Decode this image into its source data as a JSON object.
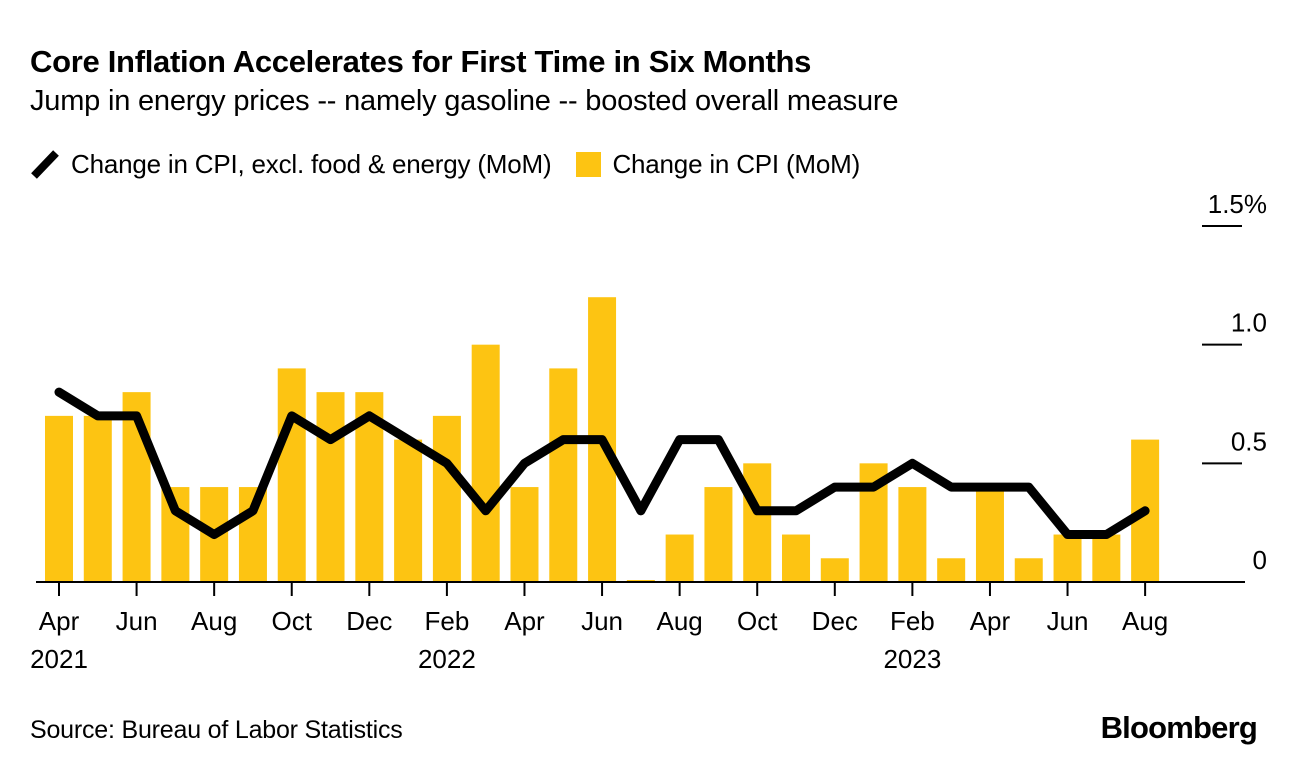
{
  "header": {
    "title": "Core Inflation Accelerates for First Time in Six Months",
    "subtitle": "Jump in energy prices -- namely gasoline -- boosted overall measure"
  },
  "legend": {
    "items": [
      {
        "id": "core-line",
        "swatch": "line-slash-icon",
        "label": "Change in CPI, excl. food & energy (MoM)"
      },
      {
        "id": "headline-bar",
        "swatch": "bar-square-icon",
        "label": "Change in CPI (MoM)"
      }
    ]
  },
  "colors": {
    "bar": "#fdc412",
    "line": "#000000",
    "axis": "#000000",
    "text": "#000000",
    "background": "#ffffff"
  },
  "chart_data": {
    "type": "bar+line",
    "x": [
      "Apr 2021",
      "May 2021",
      "Jun 2021",
      "Jul 2021",
      "Aug 2021",
      "Sep 2021",
      "Oct 2021",
      "Nov 2021",
      "Dec 2021",
      "Jan 2022",
      "Feb 2022",
      "Mar 2022",
      "Apr 2022",
      "May 2022",
      "Jun 2022",
      "Jul 2022",
      "Aug 2022",
      "Sep 2022",
      "Oct 2022",
      "Nov 2022",
      "Dec 2022",
      "Jan 2023",
      "Feb 2023",
      "Mar 2023",
      "Apr 2023",
      "May 2023",
      "Jun 2023",
      "Jul 2023",
      "Aug 2023"
    ],
    "series": [
      {
        "name": "Change in CPI, excl. food & energy (MoM)",
        "type": "line",
        "color": "#000000",
        "values": [
          0.8,
          0.7,
          0.7,
          0.3,
          0.2,
          0.3,
          0.7,
          0.6,
          0.7,
          0.6,
          0.5,
          0.3,
          0.5,
          0.6,
          0.6,
          0.3,
          0.6,
          0.6,
          0.3,
          0.3,
          0.4,
          0.4,
          0.5,
          0.4,
          0.4,
          0.4,
          0.2,
          0.2,
          0.3
        ]
      },
      {
        "name": "Change in CPI (MoM)",
        "type": "bar",
        "color": "#fdc412",
        "values": [
          0.7,
          0.7,
          0.8,
          0.4,
          0.4,
          0.4,
          0.9,
          0.8,
          0.8,
          0.6,
          0.7,
          1.0,
          0.4,
          0.9,
          1.2,
          0.0,
          0.2,
          0.4,
          0.5,
          0.2,
          0.1,
          0.5,
          0.4,
          0.1,
          0.4,
          0.1,
          0.2,
          0.2,
          0.6
        ]
      }
    ],
    "ylim": [
      0,
      1.5
    ],
    "yticks": [
      {
        "value": 1.5,
        "label": "1.5%"
      },
      {
        "value": 1.0,
        "label": "1.0"
      },
      {
        "value": 0.5,
        "label": "0.5"
      },
      {
        "value": 0,
        "label": "0"
      }
    ],
    "xticks": [
      {
        "i": 0,
        "label": "Apr"
      },
      {
        "i": 2,
        "label": "Jun"
      },
      {
        "i": 4,
        "label": "Aug"
      },
      {
        "i": 6,
        "label": "Oct"
      },
      {
        "i": 8,
        "label": "Dec"
      },
      {
        "i": 10,
        "label": "Feb"
      },
      {
        "i": 12,
        "label": "Apr"
      },
      {
        "i": 14,
        "label": "Jun"
      },
      {
        "i": 16,
        "label": "Aug"
      },
      {
        "i": 18,
        "label": "Oct"
      },
      {
        "i": 20,
        "label": "Dec"
      },
      {
        "i": 22,
        "label": "Feb"
      },
      {
        "i": 24,
        "label": "Apr"
      },
      {
        "i": 26,
        "label": "Jun"
      },
      {
        "i": 28,
        "label": "Aug"
      }
    ],
    "year_labels": [
      {
        "i": 0,
        "label": "2021"
      },
      {
        "i": 10,
        "label": "2022"
      },
      {
        "i": 22,
        "label": "2023"
      }
    ],
    "legend_position": "top",
    "grid": false
  },
  "footer": {
    "source": "Source: Bureau of Labor Statistics",
    "brand": "Bloomberg"
  }
}
